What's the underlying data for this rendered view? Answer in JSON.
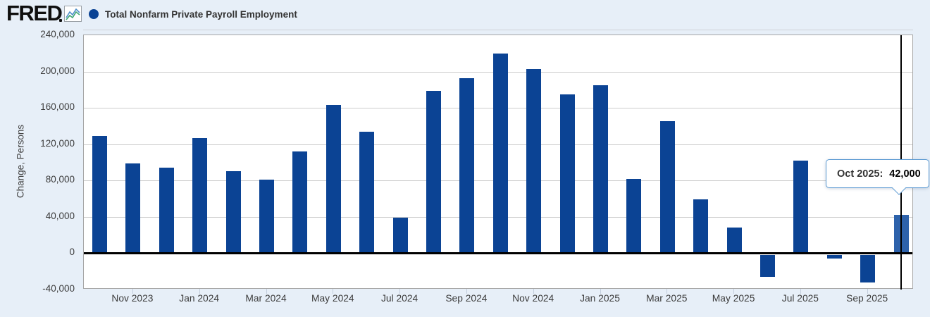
{
  "header": {
    "brand": "FRED",
    "legend": {
      "label": "Total Nonfarm Private Payroll Employment",
      "marker_color": "#0b4394"
    }
  },
  "chart_data": {
    "type": "bar",
    "title": "Total Nonfarm Private Payroll Employment",
    "xlabel": "",
    "ylabel": "Change, Persons",
    "ylim": [
      -40000,
      240000
    ],
    "ytick_interval": 40000,
    "grid": true,
    "legend_position": "top-left",
    "categories": [
      "Oct 2023",
      "Nov 2023",
      "Dec 2023",
      "Jan 2024",
      "Feb 2024",
      "Mar 2024",
      "Apr 2024",
      "May 2024",
      "Jun 2024",
      "Jul 2024",
      "Aug 2024",
      "Sep 2024",
      "Oct 2024",
      "Nov 2024",
      "Dec 2024",
      "Jan 2025",
      "Feb 2025",
      "Mar 2025",
      "Apr 2025",
      "May 2025",
      "Jun 2025",
      "Jul 2025",
      "Aug 2025",
      "Sep 2025",
      "Oct 2025"
    ],
    "values": [
      129000,
      99000,
      94000,
      127000,
      90000,
      81000,
      112000,
      163000,
      134000,
      39000,
      179000,
      193000,
      220000,
      203000,
      175000,
      185000,
      82000,
      145000,
      59000,
      28000,
      -24000,
      102000,
      -4000,
      -30000,
      42000
    ],
    "yticks": [
      {
        "value": 240000,
        "label": "240,000"
      },
      {
        "value": 200000,
        "label": "200,000"
      },
      {
        "value": 160000,
        "label": "160,000"
      },
      {
        "value": 120000,
        "label": "120,000"
      },
      {
        "value": 80000,
        "label": "80,000"
      },
      {
        "value": 40000,
        "label": "40,000"
      },
      {
        "value": 0,
        "label": "0"
      },
      {
        "value": -40000,
        "label": "-40,000"
      }
    ],
    "xticks": [
      {
        "index": 1,
        "label": "Nov 2023"
      },
      {
        "index": 3,
        "label": "Jan 2024"
      },
      {
        "index": 5,
        "label": "Mar 2024"
      },
      {
        "index": 7,
        "label": "May 2024"
      },
      {
        "index": 9,
        "label": "Jul 2024"
      },
      {
        "index": 11,
        "label": "Sep 2024"
      },
      {
        "index": 13,
        "label": "Nov 2024"
      },
      {
        "index": 15,
        "label": "Jan 2025"
      },
      {
        "index": 17,
        "label": "Mar 2025"
      },
      {
        "index": 19,
        "label": "May 2025"
      },
      {
        "index": 21,
        "label": "Jul 2025"
      },
      {
        "index": 23,
        "label": "Sep 2025"
      }
    ],
    "highlight_index": 24,
    "tooltip": {
      "label": "Oct 2025:",
      "value": "42,000"
    },
    "colors": {
      "bar": "#0b4394",
      "bar_highlight": "#2d62ab",
      "background": "#e7eff8",
      "plot_background": "#ffffff",
      "gridline": "#cccccc",
      "zero_line": "#000000",
      "cursor_line": "#000000",
      "tooltip_border": "#5d9bd3"
    }
  }
}
